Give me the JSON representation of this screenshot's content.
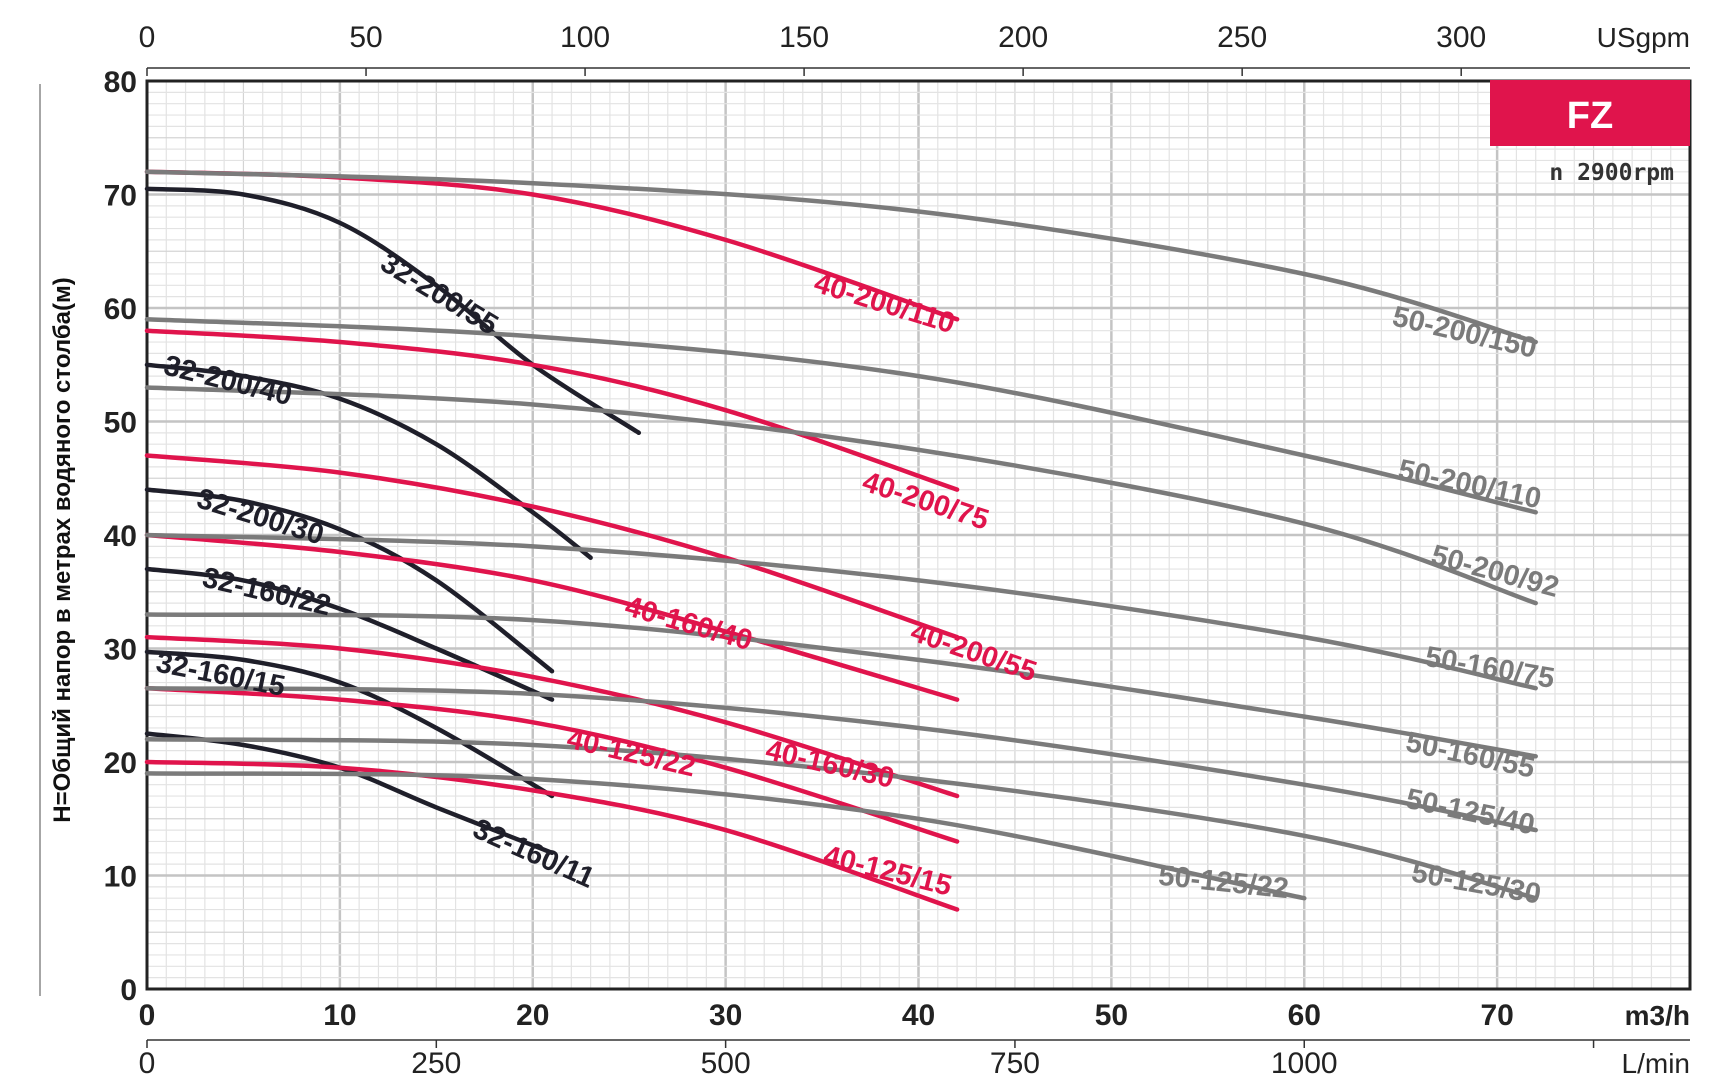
{
  "chart_data": {
    "type": "line",
    "title": "",
    "badge": "FZ",
    "speed_note": "n  2900rpm",
    "ylabel": "H=Общий напор в метрах водяного столба(м)",
    "ylim": [
      0,
      80
    ],
    "y_ticks": [
      "0",
      "10",
      "20",
      "30",
      "40",
      "50",
      "60",
      "70",
      "80"
    ],
    "x_axis_m3h": {
      "unit": "m3/h",
      "range": [
        0,
        80
      ],
      "ticks": [
        "0",
        "10",
        "20",
        "30",
        "40",
        "50",
        "60",
        "70"
      ]
    },
    "x_axis_usgpm": {
      "unit": "USgpm",
      "ticks": [
        "0",
        "50",
        "100",
        "150",
        "200",
        "250",
        "300"
      ]
    },
    "x_axis_lmin": {
      "unit": "L/min",
      "ticks": [
        "0",
        "250",
        "500",
        "750",
        "1000"
      ]
    },
    "grid": true,
    "colors": {
      "black": "#1f1f2a",
      "red": "#e0144c",
      "gray": "#7b7b7b",
      "badge": "#e0144c"
    },
    "series": [
      {
        "name": "32-200/55",
        "color": "black",
        "points": [
          [
            0,
            70.5
          ],
          [
            5,
            70
          ],
          [
            10,
            67.5
          ],
          [
            15,
            62
          ],
          [
            20,
            55
          ],
          [
            25.5,
            49
          ]
        ]
      },
      {
        "name": "32-200/40",
        "color": "black",
        "points": [
          [
            0,
            55
          ],
          [
            5,
            54
          ],
          [
            10,
            52
          ],
          [
            15,
            48
          ],
          [
            20,
            42
          ],
          [
            23,
            38
          ]
        ]
      },
      {
        "name": "32-200/30",
        "color": "black",
        "points": [
          [
            0,
            44
          ],
          [
            5,
            43
          ],
          [
            10,
            40.5
          ],
          [
            15,
            36
          ],
          [
            21,
            28
          ]
        ]
      },
      {
        "name": "32-160/22",
        "color": "black",
        "points": [
          [
            0,
            37
          ],
          [
            5,
            36
          ],
          [
            10,
            33.5
          ],
          [
            15,
            30
          ],
          [
            21,
            25.5
          ]
        ]
      },
      {
        "name": "32-160/15",
        "color": "black",
        "points": [
          [
            0,
            29.7
          ],
          [
            5,
            29
          ],
          [
            10,
            27
          ],
          [
            15,
            23
          ],
          [
            21,
            17
          ]
        ]
      },
      {
        "name": "32-160/11",
        "color": "black",
        "points": [
          [
            0,
            22.5
          ],
          [
            5,
            21.5
          ],
          [
            10,
            19.5
          ],
          [
            15,
            16
          ],
          [
            21,
            12
          ]
        ]
      },
      {
        "name": "40-200/110",
        "color": "red",
        "points": [
          [
            0,
            72
          ],
          [
            10,
            71.5
          ],
          [
            20,
            70
          ],
          [
            30,
            66
          ],
          [
            42,
            59
          ]
        ]
      },
      {
        "name": "40-200/75",
        "color": "red",
        "points": [
          [
            0,
            58
          ],
          [
            10,
            57
          ],
          [
            20,
            55
          ],
          [
            30,
            51
          ],
          [
            42,
            44
          ]
        ]
      },
      {
        "name": "40-200/55",
        "color": "red",
        "points": [
          [
            0,
            47
          ],
          [
            10,
            45.5
          ],
          [
            20,
            42.5
          ],
          [
            30,
            38
          ],
          [
            42,
            31
          ]
        ]
      },
      {
        "name": "40-160/40",
        "color": "red",
        "points": [
          [
            0,
            40
          ],
          [
            10,
            38.5
          ],
          [
            20,
            36
          ],
          [
            30,
            31.5
          ],
          [
            42,
            25.5
          ]
        ]
      },
      {
        "name": "40-160/30",
        "color": "red",
        "points": [
          [
            0,
            31
          ],
          [
            10,
            30
          ],
          [
            20,
            27.5
          ],
          [
            30,
            23.5
          ],
          [
            42,
            17
          ]
        ]
      },
      {
        "name": "40-125/22",
        "color": "red",
        "points": [
          [
            0,
            26.5
          ],
          [
            10,
            25.5
          ],
          [
            20,
            23.5
          ],
          [
            30,
            19.5
          ],
          [
            42,
            13
          ]
        ]
      },
      {
        "name": "40-125/15",
        "color": "red",
        "points": [
          [
            0,
            20
          ],
          [
            10,
            19.5
          ],
          [
            20,
            17.5
          ],
          [
            30,
            14
          ],
          [
            42,
            7
          ]
        ]
      },
      {
        "name": "50-200/150",
        "color": "gray",
        "points": [
          [
            0,
            72
          ],
          [
            20,
            71
          ],
          [
            40,
            68.5
          ],
          [
            60,
            63
          ],
          [
            72,
            57
          ]
        ]
      },
      {
        "name": "50-200/110",
        "color": "gray",
        "points": [
          [
            0,
            59
          ],
          [
            20,
            57.5
          ],
          [
            40,
            54
          ],
          [
            60,
            47
          ],
          [
            72,
            42
          ]
        ]
      },
      {
        "name": "50-200/92",
        "color": "gray",
        "points": [
          [
            0,
            53
          ],
          [
            20,
            51.5
          ],
          [
            40,
            47.5
          ],
          [
            60,
            41
          ],
          [
            72,
            34
          ]
        ]
      },
      {
        "name": "50-160/75",
        "color": "gray",
        "points": [
          [
            0,
            40
          ],
          [
            20,
            39
          ],
          [
            40,
            36
          ],
          [
            60,
            31
          ],
          [
            72,
            26.5
          ]
        ]
      },
      {
        "name": "50-160/55",
        "color": "gray",
        "points": [
          [
            0,
            33
          ],
          [
            20,
            32.5
          ],
          [
            40,
            29
          ],
          [
            60,
            24
          ],
          [
            72,
            20.5
          ]
        ]
      },
      {
        "name": "50-125/40",
        "color": "gray",
        "points": [
          [
            0,
            26.5
          ],
          [
            20,
            26
          ],
          [
            40,
            23
          ],
          [
            60,
            18
          ],
          [
            72,
            14
          ]
        ]
      },
      {
        "name": "50-125/30",
        "color": "gray",
        "points": [
          [
            0,
            22
          ],
          [
            20,
            21.5
          ],
          [
            40,
            18.5
          ],
          [
            60,
            13.5
          ],
          [
            72,
            8
          ]
        ]
      },
      {
        "name": "50-125/22",
        "color": "gray",
        "points": [
          [
            0,
            19
          ],
          [
            20,
            18.5
          ],
          [
            40,
            15
          ],
          [
            60,
            8
          ]
        ]
      }
    ]
  }
}
